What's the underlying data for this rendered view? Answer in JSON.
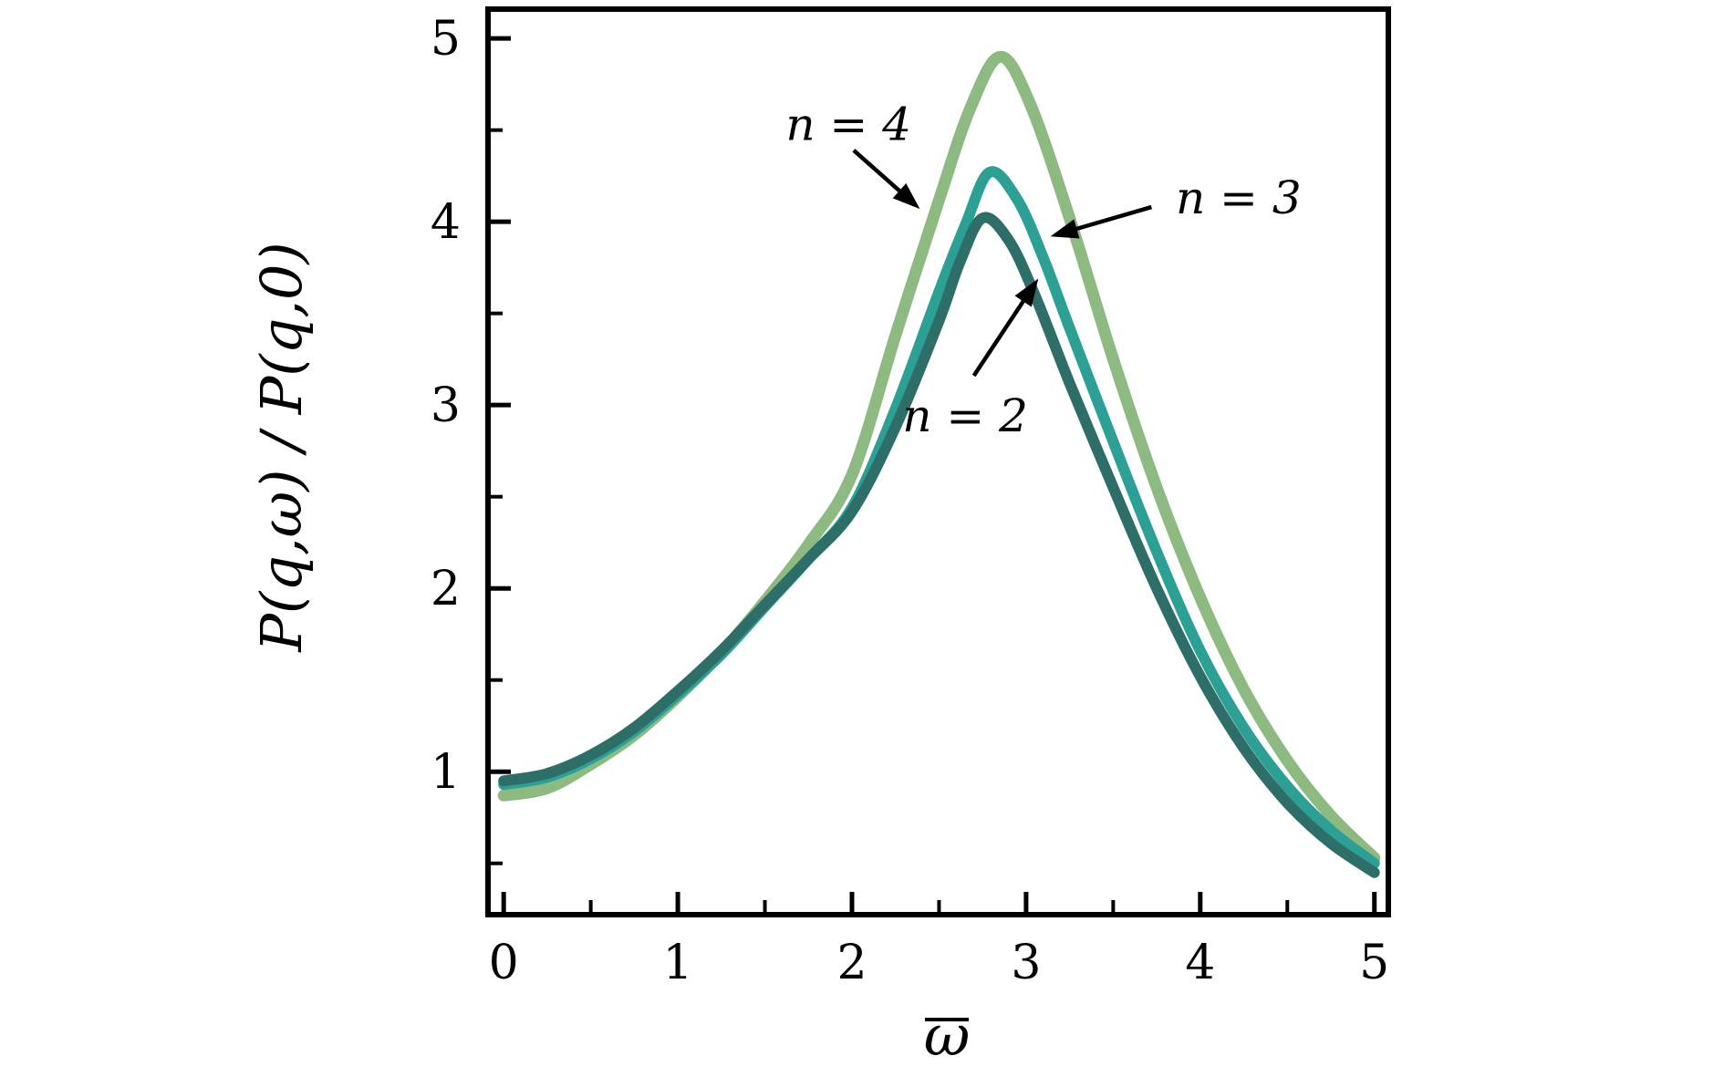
{
  "figure": {
    "background_color": "#ffffff",
    "axis_color": "#000000"
  },
  "chart_data": {
    "type": "line",
    "title": "",
    "xlabel": "ω",
    "xlabel_has_overline": true,
    "ylabel": "P(q,ω) / P(q,0)",
    "xlim": [
      -0.09,
      5.08
    ],
    "ylim": [
      0.22,
      5.16
    ],
    "x_ticks": [
      0,
      1,
      2,
      3,
      4,
      5
    ],
    "y_ticks": [
      1,
      2,
      3,
      4,
      5
    ],
    "x_minor_ticks": [
      0.5,
      1.5,
      2.5,
      3.5,
      4.5
    ],
    "y_minor_ticks": [
      0.5,
      1.5,
      2.5,
      3.5,
      4.5
    ],
    "grid": false,
    "legend_position": "none-inline-annotations",
    "series": [
      {
        "name": "n = 4",
        "color": "#8DBA81",
        "line_width": 13,
        "peak": {
          "x": 2.85,
          "y": 4.9
        },
        "points": [
          [
            0,
            0.87
          ],
          [
            0.25,
            0.91
          ],
          [
            0.5,
            1.04
          ],
          [
            0.75,
            1.2
          ],
          [
            1,
            1.41
          ],
          [
            1.25,
            1.65
          ],
          [
            1.5,
            1.93
          ],
          [
            1.75,
            2.24
          ],
          [
            2,
            2.62
          ],
          [
            2.25,
            3.38
          ],
          [
            2.5,
            4.12
          ],
          [
            2.68,
            4.62
          ],
          [
            2.85,
            4.9
          ],
          [
            3.02,
            4.65
          ],
          [
            3.25,
            4.02
          ],
          [
            3.5,
            3.25
          ],
          [
            3.75,
            2.55
          ],
          [
            4,
            1.95
          ],
          [
            4.25,
            1.45
          ],
          [
            4.5,
            1.06
          ],
          [
            4.75,
            0.76
          ],
          [
            5,
            0.53
          ]
        ]
      },
      {
        "name": "n = 3",
        "color": "#2DA096",
        "line_width": 12,
        "peak": {
          "x": 2.79,
          "y": 4.27
        },
        "points": [
          [
            0,
            0.93
          ],
          [
            0.25,
            0.97
          ],
          [
            0.5,
            1.07
          ],
          [
            0.75,
            1.22
          ],
          [
            1,
            1.42
          ],
          [
            1.25,
            1.64
          ],
          [
            1.5,
            1.9
          ],
          [
            1.75,
            2.16
          ],
          [
            2,
            2.44
          ],
          [
            2.25,
            2.98
          ],
          [
            2.5,
            3.62
          ],
          [
            2.65,
            3.98
          ],
          [
            2.79,
            4.27
          ],
          [
            2.95,
            4.12
          ],
          [
            3.1,
            3.8
          ],
          [
            3.25,
            3.42
          ],
          [
            3.5,
            2.8
          ],
          [
            3.75,
            2.2
          ],
          [
            4,
            1.66
          ],
          [
            4.25,
            1.24
          ],
          [
            4.5,
            0.92
          ],
          [
            4.75,
            0.68
          ],
          [
            5,
            0.5
          ]
        ]
      },
      {
        "name": "n = 2",
        "color": "#2E6E69",
        "line_width": 12,
        "peak": {
          "x": 2.75,
          "y": 4.02
        },
        "points": [
          [
            0,
            0.95
          ],
          [
            0.25,
            0.99
          ],
          [
            0.5,
            1.09
          ],
          [
            0.75,
            1.24
          ],
          [
            1,
            1.44
          ],
          [
            1.25,
            1.66
          ],
          [
            1.5,
            1.91
          ],
          [
            1.75,
            2.16
          ],
          [
            2,
            2.42
          ],
          [
            2.25,
            2.88
          ],
          [
            2.5,
            3.46
          ],
          [
            2.62,
            3.78
          ],
          [
            2.75,
            4.02
          ],
          [
            2.9,
            3.9
          ],
          [
            3.05,
            3.6
          ],
          [
            3.25,
            3.12
          ],
          [
            3.5,
            2.55
          ],
          [
            3.75,
            2.0
          ],
          [
            4,
            1.52
          ],
          [
            4.25,
            1.13
          ],
          [
            4.5,
            0.83
          ],
          [
            4.75,
            0.61
          ],
          [
            5,
            0.45
          ]
        ]
      }
    ],
    "annotations": [
      {
        "label": "n = 4",
        "text_xy": [
          1.98,
          4.53
        ],
        "arrow_from": [
          2.01,
          4.39
        ],
        "arrow_to": [
          2.39,
          4.07
        ]
      },
      {
        "label": "n = 3",
        "text_xy": [
          4.22,
          4.13
        ],
        "arrow_from": [
          3.72,
          4.08
        ],
        "arrow_to": [
          3.14,
          3.92
        ]
      },
      {
        "label": "n = 2",
        "text_xy": [
          2.65,
          2.94
        ],
        "arrow_from": [
          2.7,
          3.16
        ],
        "arrow_to": [
          3.07,
          3.69
        ]
      }
    ]
  }
}
